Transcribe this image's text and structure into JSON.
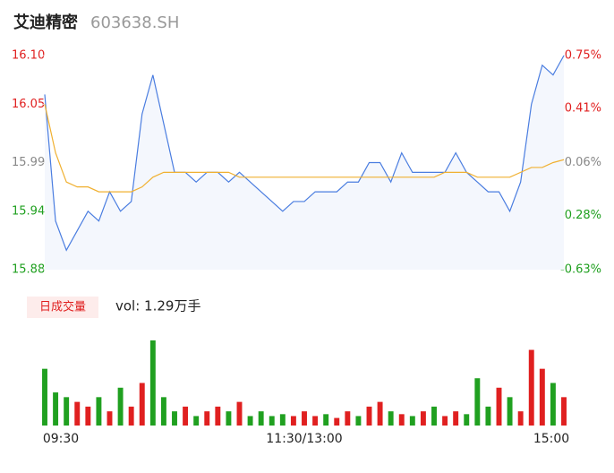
{
  "chart_data": {
    "type": "line",
    "title": "艾迪精密",
    "subtitle": "603638.SH",
    "categories": [
      "09:30",
      null,
      null,
      null,
      null,
      null,
      null,
      null,
      null,
      null,
      null,
      null,
      null,
      null,
      null,
      null,
      null,
      null,
      null,
      null,
      null,
      null,
      null,
      null,
      "11:30/13:00",
      null,
      null,
      null,
      null,
      null,
      null,
      null,
      null,
      null,
      null,
      null,
      null,
      null,
      null,
      null,
      null,
      null,
      null,
      null,
      null,
      null,
      null,
      null,
      "15:00"
    ],
    "series": [
      {
        "color": "#4a7de0",
        "values": [
          16.06,
          15.93,
          15.9,
          15.92,
          15.94,
          15.93,
          15.96,
          15.94,
          15.95,
          16.04,
          16.08,
          16.03,
          15.98,
          15.98,
          15.97,
          15.98,
          15.98,
          15.97,
          15.98,
          15.97,
          15.96,
          15.95,
          15.94,
          15.95,
          15.95,
          15.96,
          15.96,
          15.96,
          15.97,
          15.97,
          15.99,
          15.99,
          15.97,
          16.0,
          15.98,
          15.98,
          15.98,
          15.98,
          16.0,
          15.98,
          15.97,
          15.96,
          15.96,
          15.94,
          15.97,
          16.05,
          16.09,
          16.08,
          16.1
        ]
      },
      {
        "color": "#f0b030",
        "values": [
          16.05,
          16.0,
          15.97,
          15.965,
          15.965,
          15.96,
          15.96,
          15.96,
          15.96,
          15.965,
          15.975,
          15.98,
          15.98,
          15.98,
          15.98,
          15.98,
          15.98,
          15.98,
          15.975,
          15.975,
          15.975,
          15.975,
          15.975,
          15.975,
          15.975,
          15.975,
          15.975,
          15.975,
          15.975,
          15.975,
          15.975,
          15.975,
          15.975,
          15.975,
          15.975,
          15.975,
          15.975,
          15.98,
          15.98,
          15.98,
          15.975,
          15.975,
          15.975,
          15.975,
          15.98,
          15.985,
          15.985,
          15.99,
          15.993
        ]
      }
    ],
    "ylim": [
      15.88,
      16.1
    ],
    "yticks": [
      {
        "value": 16.1,
        "label": "16.10"
      },
      16.05,
      15.99,
      15.94,
      15.88
    ],
    "y2lim": [
      -0.63,
      0.75
    ],
    "y2ticks": [
      {
        "value": 0.75,
        "label": "0.75%"
      },
      {
        "value": 0.41,
        "label": "0.41%"
      },
      {
        "value": 0.06,
        "label": "0.06%"
      },
      {
        "value": -0.28,
        "label": "-0.28%"
      },
      {
        "value": -0.63,
        "label": "-0.63%"
      }
    ],
    "volume": {
      "type": "bar",
      "label": "日成交量",
      "summary": "vol: 1.29万手",
      "values": [
        60,
        35,
        30,
        25,
        20,
        30,
        15,
        40,
        20,
        45,
        90,
        30,
        15,
        20,
        10,
        15,
        20,
        15,
        25,
        10,
        15,
        10,
        12,
        10,
        15,
        10,
        12,
        8,
        15,
        10,
        20,
        25,
        15,
        12,
        10,
        15,
        20,
        10,
        15,
        12,
        50,
        20,
        40,
        30,
        15,
        80,
        60,
        45,
        30
      ],
      "colors": [
        "#20a020",
        "#20a020",
        "#20a020",
        "#e02020",
        "#e02020",
        "#20a020",
        "#e02020",
        "#20a020",
        "#e02020",
        "#e02020",
        "#20a020",
        "#20a020",
        "#20a020",
        "#e02020",
        "#20a020",
        "#e02020",
        "#e02020",
        "#20a020",
        "#e02020",
        "#20a020",
        "#20a020",
        "#20a020",
        "#20a020",
        "#e02020",
        "#e02020",
        "#e02020",
        "#20a020",
        "#e02020",
        "#e02020",
        "#20a020",
        "#e02020",
        "#e02020",
        "#20a020",
        "#e02020",
        "#20a020",
        "#e02020",
        "#20a020",
        "#e02020",
        "#e02020",
        "#20a020",
        "#20a020",
        "#20a020",
        "#e02020",
        "#20a020",
        "#e02020",
        "#e02020",
        "#e02020",
        "#20a020",
        "#e02020"
      ]
    }
  }
}
